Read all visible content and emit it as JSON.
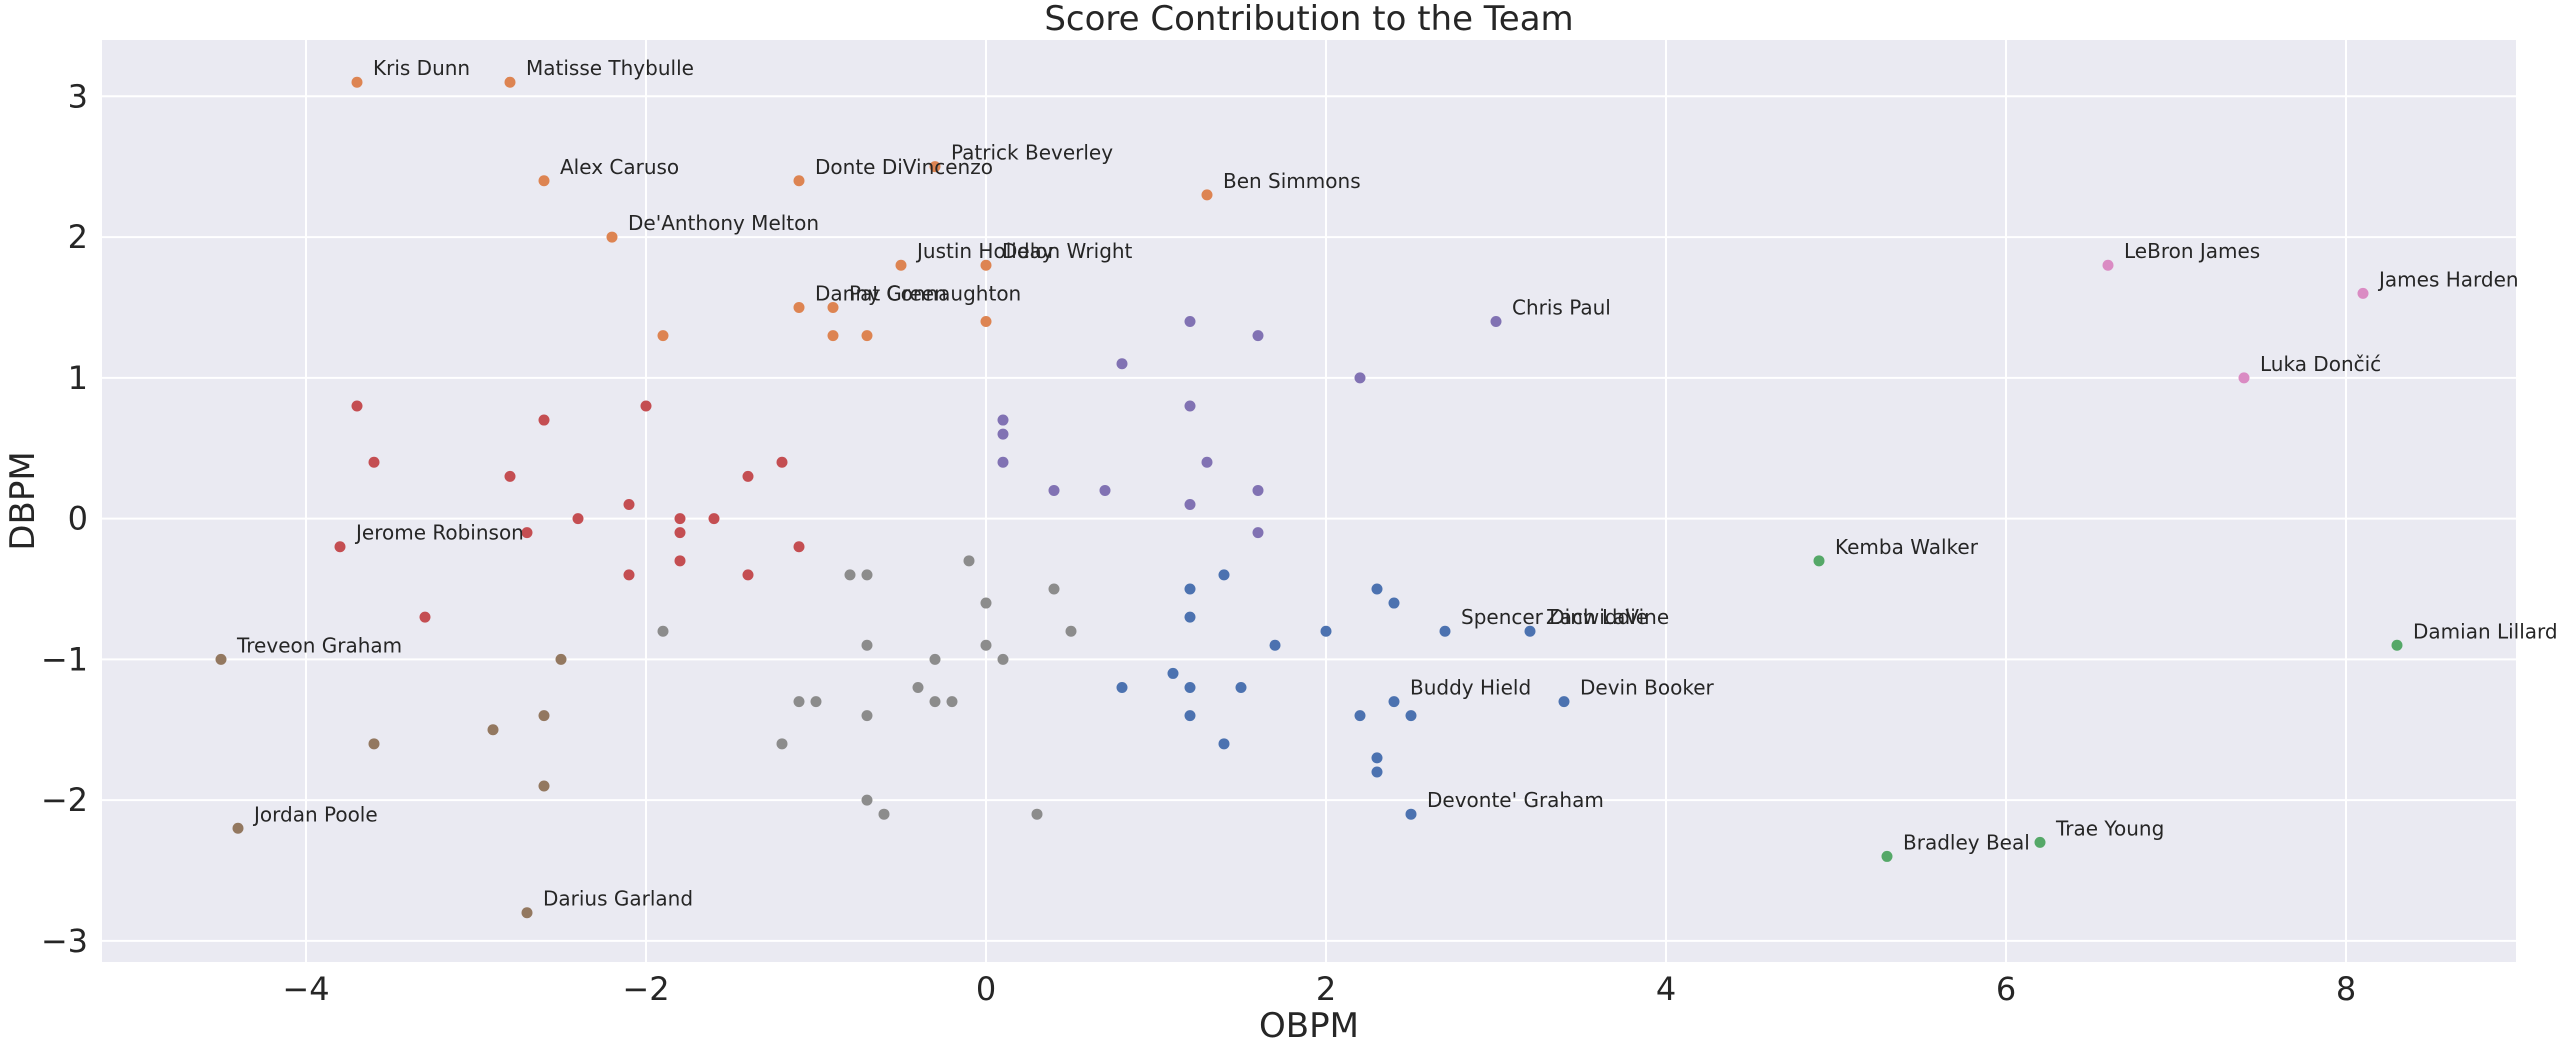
{
  "chart_data": {
    "type": "scatter",
    "title": "Score Contribution to the Team",
    "xlabel": "OBPM",
    "ylabel": "DBPM",
    "xlim": [
      -5.2,
      9.0
    ],
    "ylim": [
      -3.15,
      3.4
    ],
    "xticks": [
      -4,
      -2,
      0,
      2,
      4,
      6,
      8
    ],
    "yticks": [
      -3,
      -2,
      -1,
      0,
      1,
      2,
      3
    ],
    "grid": true,
    "legend": "none",
    "background": "#eaeaf2",
    "series": [
      {
        "color": "#dd8452",
        "points": [
          {
            "x": -3.7,
            "y": 3.1,
            "label": "Kris Dunn"
          },
          {
            "x": -2.8,
            "y": 3.1,
            "label": "Matisse Thybulle"
          },
          {
            "x": -2.6,
            "y": 2.4,
            "label": "Alex Caruso"
          },
          {
            "x": -1.1,
            "y": 2.4,
            "label": "Donte DiVincenzo"
          },
          {
            "x": -0.3,
            "y": 2.5,
            "label": "Patrick Beverley"
          },
          {
            "x": 1.3,
            "y": 2.3,
            "label": "Ben Simmons"
          },
          {
            "x": -2.2,
            "y": 2.0,
            "label": "De'Anthony Melton"
          },
          {
            "x": -0.5,
            "y": 1.8,
            "label": "Justin Holiday"
          },
          {
            "x": 0.0,
            "y": 1.8,
            "label": "Delon Wright"
          },
          {
            "x": -1.1,
            "y": 1.5,
            "label": "Danny Green"
          },
          {
            "x": -0.9,
            "y": 1.5,
            "label": "Pat Connaughton"
          },
          {
            "x": -1.9,
            "y": 1.3
          },
          {
            "x": -0.9,
            "y": 1.3
          },
          {
            "x": -0.7,
            "y": 1.3
          },
          {
            "x": 0.0,
            "y": 1.4
          }
        ]
      },
      {
        "color": "#8172b3",
        "points": [
          {
            "x": 3.0,
            "y": 1.4,
            "label": "Chris Paul"
          },
          {
            "x": 1.2,
            "y": 1.4
          },
          {
            "x": 1.6,
            "y": 1.3
          },
          {
            "x": 0.8,
            "y": 1.1
          },
          {
            "x": 2.2,
            "y": 1.0
          },
          {
            "x": 1.2,
            "y": 0.8
          },
          {
            "x": 0.1,
            "y": 0.7
          },
          {
            "x": 0.1,
            "y": 0.6
          },
          {
            "x": 0.1,
            "y": 0.4
          },
          {
            "x": 1.3,
            "y": 0.4
          },
          {
            "x": 0.4,
            "y": 0.2
          },
          {
            "x": 0.7,
            "y": 0.2
          },
          {
            "x": 1.6,
            "y": 0.2
          },
          {
            "x": 1.2,
            "y": 0.1
          },
          {
            "x": 1.6,
            "y": -0.1
          }
        ]
      },
      {
        "color": "#da8bc3",
        "points": [
          {
            "x": 6.6,
            "y": 1.8,
            "label": "LeBron James"
          },
          {
            "x": 8.1,
            "y": 1.6,
            "label": "James Harden"
          },
          {
            "x": 7.4,
            "y": 1.0,
            "label": "Luka Dončić"
          }
        ]
      },
      {
        "color": "#55a868",
        "points": [
          {
            "x": 4.9,
            "y": -0.3,
            "label": "Kemba Walker"
          },
          {
            "x": 8.3,
            "y": -0.9,
            "label": "Damian Lillard"
          },
          {
            "x": 6.2,
            "y": -2.3,
            "label": "Trae Young"
          },
          {
            "x": 5.3,
            "y": -2.4,
            "label": "Bradley Beal"
          }
        ]
      },
      {
        "color": "#c44e52",
        "points": [
          {
            "x": -3.8,
            "y": -0.2,
            "label": "Jerome Robinson"
          },
          {
            "x": -3.7,
            "y": 0.8
          },
          {
            "x": -2.6,
            "y": 0.7
          },
          {
            "x": -2.0,
            "y": 0.8
          },
          {
            "x": -3.6,
            "y": 0.4
          },
          {
            "x": -2.8,
            "y": 0.3
          },
          {
            "x": -1.2,
            "y": 0.4
          },
          {
            "x": -1.4,
            "y": 0.3
          },
          {
            "x": -2.1,
            "y": 0.1
          },
          {
            "x": -2.4,
            "y": 0.0
          },
          {
            "x": -1.8,
            "y": 0.0
          },
          {
            "x": -1.6,
            "y": 0.0
          },
          {
            "x": -2.7,
            "y": -0.1
          },
          {
            "x": -1.8,
            "y": -0.1
          },
          {
            "x": -1.1,
            "y": -0.2
          },
          {
            "x": -1.8,
            "y": -0.3
          },
          {
            "x": -2.1,
            "y": -0.4
          },
          {
            "x": -1.4,
            "y": -0.4
          },
          {
            "x": -3.3,
            "y": -0.7
          }
        ]
      },
      {
        "color": "#8c8c8c",
        "points": [
          {
            "x": -0.1,
            "y": -0.3
          },
          {
            "x": -0.8,
            "y": -0.4
          },
          {
            "x": -0.7,
            "y": -0.4
          },
          {
            "x": 0.4,
            "y": -0.5
          },
          {
            "x": 0.0,
            "y": -0.6
          },
          {
            "x": -1.9,
            "y": -0.8
          },
          {
            "x": 0.5,
            "y": -0.8
          },
          {
            "x": -0.7,
            "y": -0.9
          },
          {
            "x": 0.0,
            "y": -0.9
          },
          {
            "x": -0.3,
            "y": -1.0
          },
          {
            "x": 0.1,
            "y": -1.0
          },
          {
            "x": -0.4,
            "y": -1.2
          },
          {
            "x": -1.1,
            "y": -1.3
          },
          {
            "x": -1.0,
            "y": -1.3
          },
          {
            "x": -0.3,
            "y": -1.3
          },
          {
            "x": -0.2,
            "y": -1.3
          },
          {
            "x": -0.7,
            "y": -1.4
          },
          {
            "x": -1.2,
            "y": -1.6
          },
          {
            "x": -0.7,
            "y": -2.0
          },
          {
            "x": -0.6,
            "y": -2.1
          },
          {
            "x": 0.3,
            "y": -2.1
          }
        ]
      },
      {
        "color": "#4c72b0",
        "points": [
          {
            "x": 2.7,
            "y": -0.8,
            "label": "Spencer Dinwiddie"
          },
          {
            "x": 3.2,
            "y": -0.8,
            "label": "Zach LaVine"
          },
          {
            "x": 3.4,
            "y": -1.3,
            "label": "Devin Booker"
          },
          {
            "x": 2.4,
            "y": -1.3,
            "label": "Buddy Hield"
          },
          {
            "x": 2.5,
            "y": -2.1,
            "label": "Devonte' Graham"
          },
          {
            "x": 2.3,
            "y": -0.5
          },
          {
            "x": 2.4,
            "y": -0.6
          },
          {
            "x": 1.2,
            "y": -0.5
          },
          {
            "x": 1.4,
            "y": -0.4
          },
          {
            "x": 1.2,
            "y": -0.7
          },
          {
            "x": 2.0,
            "y": -0.8
          },
          {
            "x": 1.7,
            "y": -0.9
          },
          {
            "x": 1.1,
            "y": -1.1
          },
          {
            "x": 0.8,
            "y": -1.2
          },
          {
            "x": 1.2,
            "y": -1.2
          },
          {
            "x": 1.5,
            "y": -1.2
          },
          {
            "x": 1.2,
            "y": -1.4
          },
          {
            "x": 2.2,
            "y": -1.4
          },
          {
            "x": 2.5,
            "y": -1.4
          },
          {
            "x": 1.4,
            "y": -1.6
          },
          {
            "x": 2.3,
            "y": -1.7
          },
          {
            "x": 2.3,
            "y": -1.8
          }
        ]
      },
      {
        "color": "#937860",
        "points": [
          {
            "x": -4.5,
            "y": -1.0,
            "label": "Treveon Graham"
          },
          {
            "x": -4.4,
            "y": -2.2,
            "label": "Jordan Poole"
          },
          {
            "x": -2.7,
            "y": -2.8,
            "label": "Darius Garland"
          },
          {
            "x": -2.5,
            "y": -1.0
          },
          {
            "x": -2.6,
            "y": -1.4
          },
          {
            "x": -2.9,
            "y": -1.5
          },
          {
            "x": -3.6,
            "y": -1.6
          },
          {
            "x": -2.6,
            "y": -1.9
          }
        ]
      }
    ]
  }
}
